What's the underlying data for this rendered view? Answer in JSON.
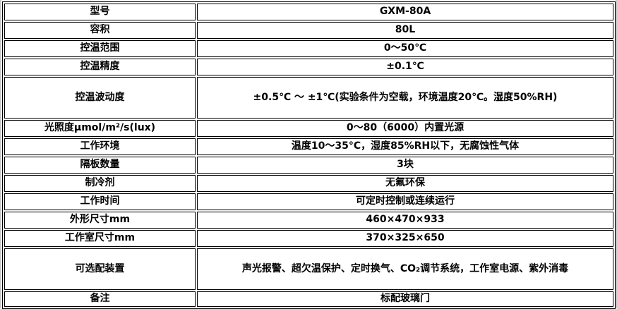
{
  "table": {
    "title": "product-specification-table",
    "colors": {
      "border": "#000000",
      "background": "#ffffff",
      "text": "#000000",
      "page_edge": "#c9c9c9"
    },
    "rows": [
      {
        "label": "型号",
        "value": "GXM-80A"
      },
      {
        "label": "容积",
        "value": "80L"
      },
      {
        "label": "控温范围",
        "value": "0～50℃"
      },
      {
        "label": "控温精度",
        "value": "±0.1℃"
      },
      {
        "label": "控温波动度",
        "value": "±0.5℃ ～ ±1℃(实验条件为空载，环境温度20℃。湿度50%RH)"
      },
      {
        "label": "光照度μmol/m²/s(lux)",
        "value": "0～80（6000）内置光源"
      },
      {
        "label": "工作环境",
        "value": "温度10～35°C，湿度85%RH以下，无腐蚀性气体"
      },
      {
        "label": "隔板数量",
        "value": "3块"
      },
      {
        "label": "制冷剂",
        "value": "无氟环保"
      },
      {
        "label": "工作时间",
        "value": "可定时控制或连续运行"
      },
      {
        "label": "外形尺寸mm",
        "value": "460×470×933"
      },
      {
        "label": "工作室尺寸mm",
        "value": "370×325×650"
      },
      {
        "label": "可选配装置",
        "value": "声光报警、超欠温保护、定时换气、CO₂调节系统，工作室电源、紫外消毒"
      },
      {
        "label": "备注",
        "value": "标配玻璃门"
      }
    ]
  }
}
